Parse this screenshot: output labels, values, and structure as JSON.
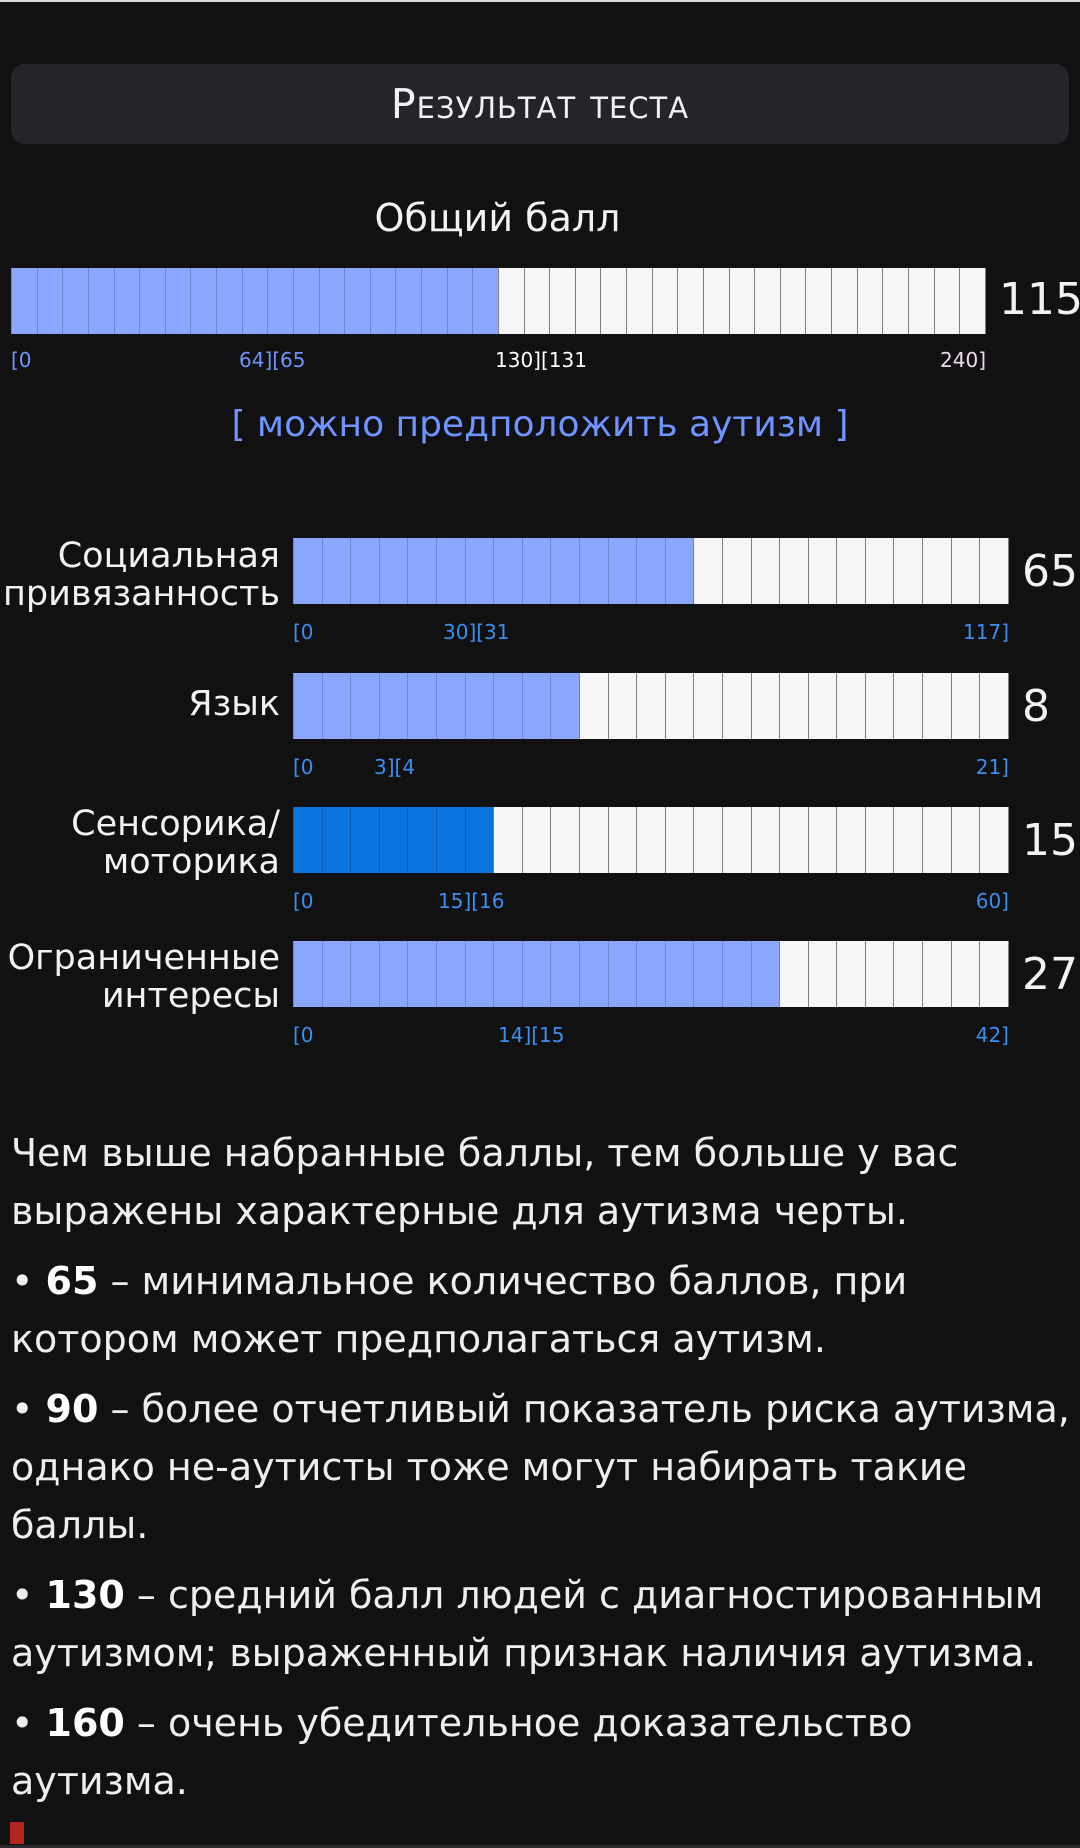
{
  "header": {
    "title": "Результат теста"
  },
  "total": {
    "label": "Общий балл",
    "score": "115",
    "value": 115,
    "max": 240,
    "segments": 38,
    "ticks": [
      "[0",
      "64][65",
      "130][131",
      "240]"
    ]
  },
  "verdict": "[ можно предположить аутизм ]",
  "categories": [
    {
      "label_line1": "Социальная",
      "label_line2": "привязанность",
      "score": "65",
      "value": 65,
      "max": 117,
      "ticks": [
        "[0",
        "30][31",
        "117]"
      ]
    },
    {
      "label_line1": "Язык",
      "label_line2": "",
      "score": "8",
      "value": 8,
      "max": 21,
      "ticks": [
        "[0",
        "3][4",
        "21]"
      ]
    },
    {
      "label_line1": "Сенсорика/",
      "label_line2": "моторика",
      "score": "15",
      "value": 15,
      "max": 60,
      "ticks": [
        "[0",
        "15][16",
        "60]"
      ]
    },
    {
      "label_line1": "Ограниченные",
      "label_line2": "интересы",
      "score": "27",
      "value": 27,
      "max": 42,
      "ticks": [
        "[0",
        "14][15",
        "42]"
      ]
    }
  ],
  "description": {
    "intro": "Чем выше набранные баллы, тем больше у вас выражены характерные для аутизма черты.",
    "points": [
      {
        "bullet": "• ",
        "value": "65",
        "text": " – минимальное количество баллов, при котором может предполагаться аутизм."
      },
      {
        "bullet": "• ",
        "value": "90",
        "text": " – более отчетливый показатель риска аутизма, однако не-аутисты тоже могут набирать такие баллы."
      },
      {
        "bullet": "• ",
        "value": "130",
        "text": " – средний балл людей с диагностированным аутизмом; выраженный признак наличия аутизма."
      },
      {
        "bullet": "• ",
        "value": "160",
        "text": " – очень убедительное доказательство аутизма."
      }
    ]
  },
  "colors": {
    "filled": "#8aa6ff",
    "filled_dark": "#0a73dc",
    "empty": "#f6f6f6",
    "verdict": "#6f93ff"
  }
}
